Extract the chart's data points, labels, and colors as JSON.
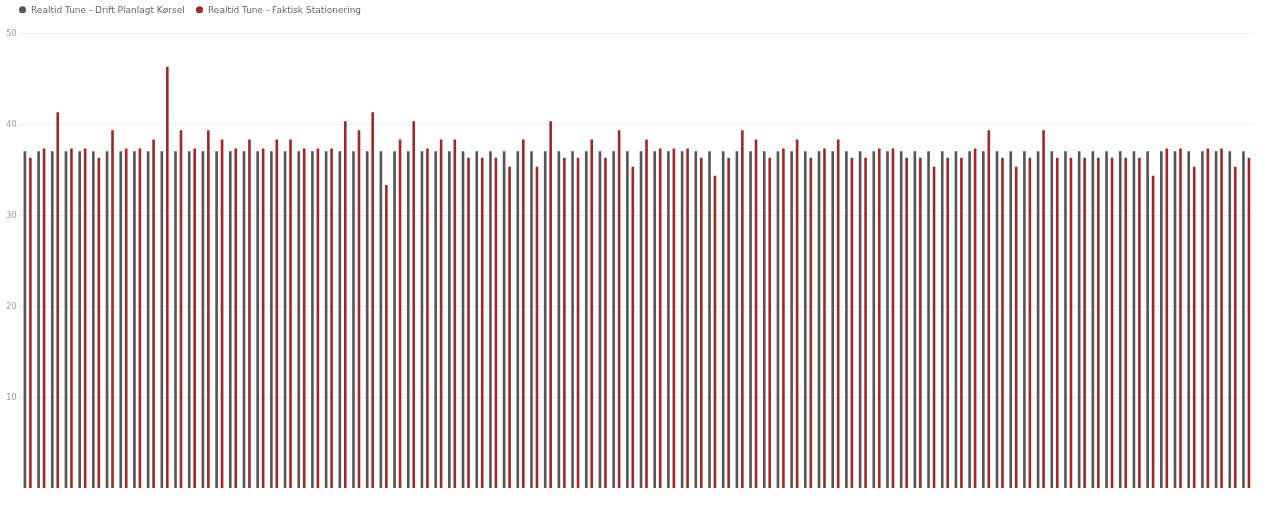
{
  "chart_data": {
    "type": "bar",
    "categories": [
      null,
      null,
      null,
      null,
      null,
      null,
      null,
      null,
      null,
      null,
      null,
      null,
      null,
      null,
      null,
      null,
      null,
      null,
      null,
      null,
      null,
      null,
      null,
      null,
      null,
      null,
      null,
      null,
      null,
      null,
      null,
      null,
      null,
      null,
      null,
      null,
      null,
      null,
      null,
      null,
      null,
      null,
      null,
      null,
      null,
      null,
      null,
      null,
      null,
      null,
      null,
      null,
      null,
      null,
      null,
      null,
      null,
      null,
      null,
      null,
      null,
      null,
      null,
      null,
      null,
      null,
      null,
      null,
      null,
      null,
      null,
      null,
      null,
      null,
      null,
      null,
      null,
      null,
      null,
      null,
      null,
      null,
      null,
      null,
      null,
      null,
      null,
      null,
      null,
      null
    ],
    "series": [
      {
        "name": "Realtid Tune - Drift Planlagt Kørsel",
        "color": "#555555",
        "values": [
          37,
          37,
          37,
          37,
          37,
          37,
          37,
          37,
          37,
          37,
          37,
          37,
          37,
          37,
          37,
          37,
          37,
          37,
          37,
          37,
          37,
          37,
          37,
          37,
          37,
          37,
          37,
          37,
          37,
          37,
          37,
          37,
          37,
          37,
          37,
          37,
          37,
          37,
          37,
          37,
          37,
          37,
          37,
          37,
          37,
          37,
          37,
          37,
          37,
          37,
          37,
          37,
          37,
          37,
          37,
          37,
          37,
          37,
          37,
          37,
          37,
          37,
          37,
          37,
          37,
          37,
          37,
          37,
          37,
          37,
          37,
          37,
          37,
          37,
          37,
          37,
          37,
          37,
          37,
          37,
          37,
          37,
          37,
          37,
          37,
          37,
          37,
          37,
          37,
          37
        ]
      },
      {
        "name": "Realtid Tune - Faktisk Stationering",
        "color": "#9e2a25",
        "values": [
          36.3,
          37.3,
          41.3,
          37.3,
          37.3,
          36.3,
          39.3,
          37.3,
          37.3,
          38.3,
          46.3,
          39.3,
          37.3,
          39.3,
          38.3,
          37.3,
          38.3,
          37.3,
          38.3,
          38.3,
          37.3,
          37.3,
          37.3,
          40.3,
          39.3,
          41.3,
          33.3,
          38.3,
          40.3,
          37.3,
          38.3,
          38.3,
          36.3,
          36.3,
          36.3,
          35.3,
          38.3,
          35.3,
          40.3,
          36.3,
          36.3,
          38.3,
          36.3,
          39.3,
          35.3,
          38.3,
          37.3,
          37.3,
          37.3,
          36.3,
          34.3,
          36.3,
          39.3,
          38.3,
          36.3,
          37.3,
          38.3,
          36.3,
          37.3,
          38.3,
          36.3,
          36.3,
          37.3,
          37.3,
          36.3,
          36.3,
          35.3,
          36.3,
          36.3,
          37.3,
          39.3,
          36.3,
          35.3,
          36.3,
          39.3,
          36.3,
          36.3,
          36.3,
          36.3,
          36.3,
          36.3,
          36.3,
          34.3,
          37.3,
          37.3,
          35.3,
          37.3,
          37.3,
          35.3,
          36.3
        ]
      }
    ],
    "ylim": [
      0,
      50
    ],
    "yticks": [
      10,
      20,
      30,
      40,
      50
    ],
    "grid": "y",
    "legend": "top left",
    "tick_labels": "y"
  }
}
